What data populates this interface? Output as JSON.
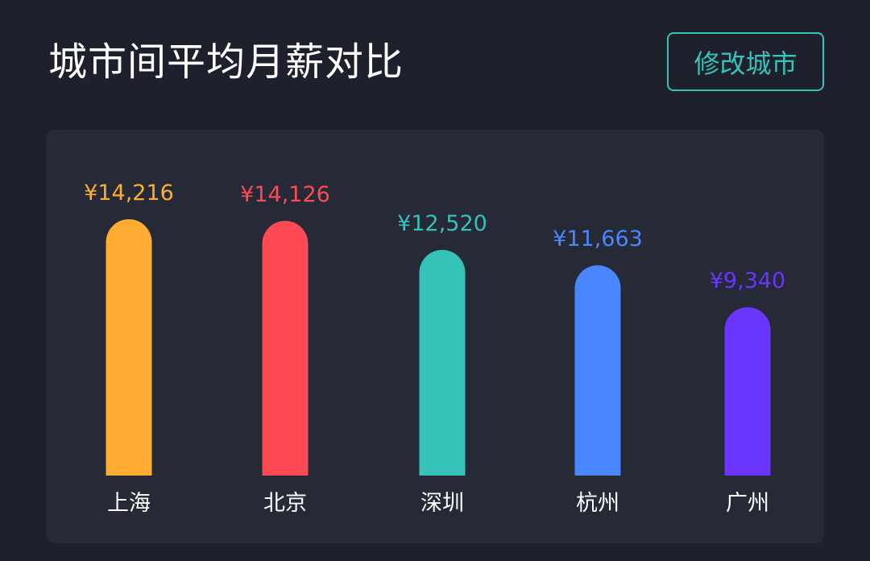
{
  "header": {
    "title": "城市间平均月薪对比",
    "button_label": "修改城市"
  },
  "colors": {
    "background": "#1e212c",
    "card": "#262a36",
    "accent": "#36c1b9"
  },
  "chart_data": {
    "type": "bar",
    "categories": [
      "上海",
      "北京",
      "深圳",
      "杭州",
      "广州"
    ],
    "values": [
      14216,
      14126,
      12520,
      11663,
      9340
    ],
    "value_labels": [
      "¥14,216",
      "¥14,126",
      "¥12,520",
      "¥11,663",
      "¥9,340"
    ],
    "colors": [
      "#ffac33",
      "#ff4a55",
      "#36c1b9",
      "#4a86ff",
      "#6a35ff"
    ],
    "ylim": [
      0,
      14216
    ],
    "grid": false,
    "legend": "none"
  }
}
